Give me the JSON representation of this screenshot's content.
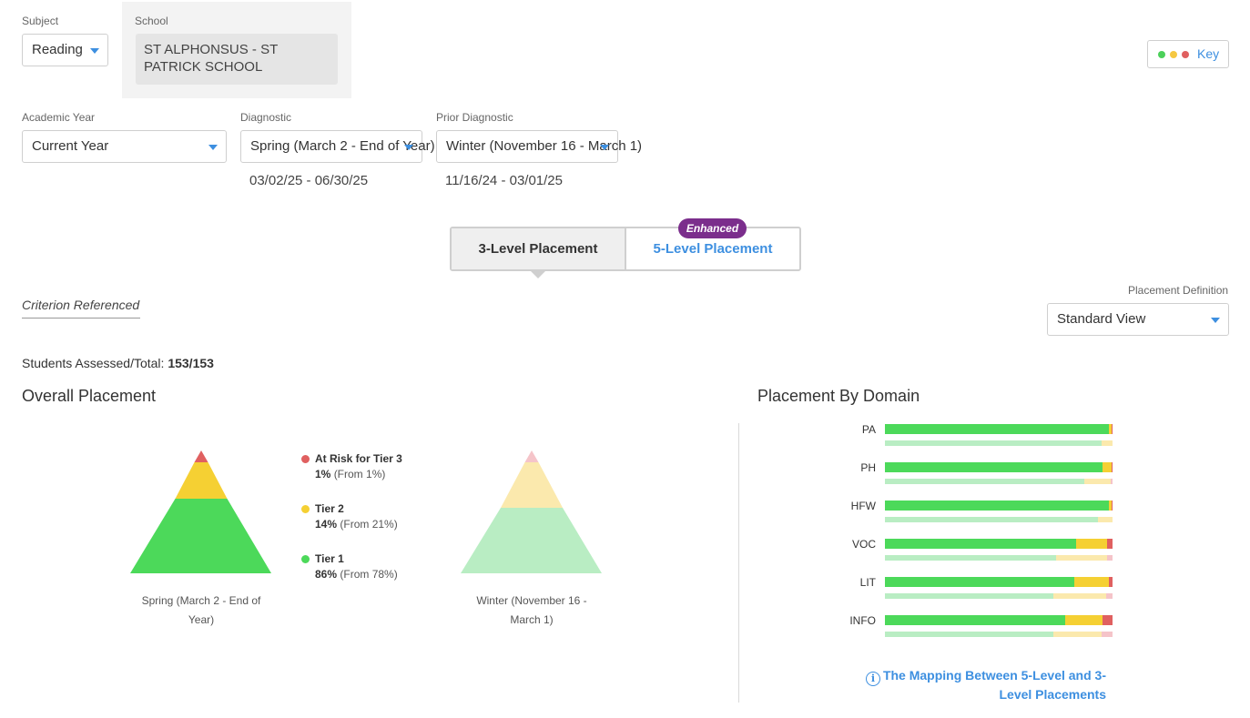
{
  "filters": {
    "subject": {
      "label": "Subject",
      "value": "Reading"
    },
    "school": {
      "label": "School",
      "value": "ST ALPHONSUS - ST PATRICK SCHOOL"
    },
    "academic_year": {
      "label": "Academic Year",
      "value": "Current Year"
    },
    "diagnostic": {
      "label": "Diagnostic",
      "value": "Spring (March 2 - End of Year)",
      "dates": "03/02/25 - 06/30/25"
    },
    "prior_diagnostic": {
      "label": "Prior Diagnostic",
      "value": "Winter (November 16 - March 1)",
      "dates": "11/16/24 - 03/01/25"
    }
  },
  "key_button": {
    "label": "Key",
    "dot_colors": [
      "#4cd05a",
      "#f5c842",
      "#e06060"
    ]
  },
  "placement_toggle": {
    "option_3_level": "3-Level Placement",
    "option_5_level": "5-Level Placement",
    "badge": "Enhanced",
    "selected": "3-Level Placement"
  },
  "criterion": "Criterion Referenced",
  "placement_definition": {
    "label": "Placement Definition",
    "value": "Standard View"
  },
  "students": {
    "label": "Students Assessed/Total:",
    "value": "153/153"
  },
  "overall": {
    "title": "Overall Placement",
    "current_caption": "Spring (March 2 - End of Year)",
    "prior_caption": "Winter (November 16 - March 1)",
    "legend": [
      {
        "name": "At Risk for Tier 3",
        "pct": "1%",
        "from": "(From 1%)",
        "color": "#e06060"
      },
      {
        "name": "Tier 2",
        "pct": "14%",
        "from": "(From 21%)",
        "color": "#f5d033"
      },
      {
        "name": "Tier 1",
        "pct": "86%",
        "from": "(From 78%)",
        "color": "#4cd95a"
      }
    ]
  },
  "domain": {
    "title": "Placement By Domain",
    "rows": [
      {
        "label": "PA",
        "current": [
          0.985,
          0.012,
          0.003
        ],
        "prior": [
          0.95,
          0.05,
          0.0
        ]
      },
      {
        "label": "PH",
        "current": [
          0.955,
          0.04,
          0.005
        ],
        "prior": [
          0.875,
          0.115,
          0.01
        ]
      },
      {
        "label": "HFW",
        "current": [
          0.985,
          0.01,
          0.005
        ],
        "prior": [
          0.935,
          0.065,
          0.0
        ]
      },
      {
        "label": "VOC",
        "current": [
          0.84,
          0.135,
          0.025
        ],
        "prior": [
          0.75,
          0.225,
          0.025
        ]
      },
      {
        "label": "LIT",
        "current": [
          0.83,
          0.155,
          0.015
        ],
        "prior": [
          0.74,
          0.23,
          0.03
        ]
      },
      {
        "label": "INFO",
        "current": [
          0.79,
          0.165,
          0.045
        ],
        "prior": [
          0.74,
          0.21,
          0.05
        ]
      }
    ],
    "colors": {
      "tier1": "#4cd95a",
      "tier2": "#f5d033",
      "tier3": "#e06060",
      "tier1_prior": "#b9edc3",
      "tier2_prior": "#fbe9ad",
      "tier3_prior": "#f5c4c9"
    }
  },
  "mapping_link": "The Mapping Between 5-Level and 3-Level Placements"
}
